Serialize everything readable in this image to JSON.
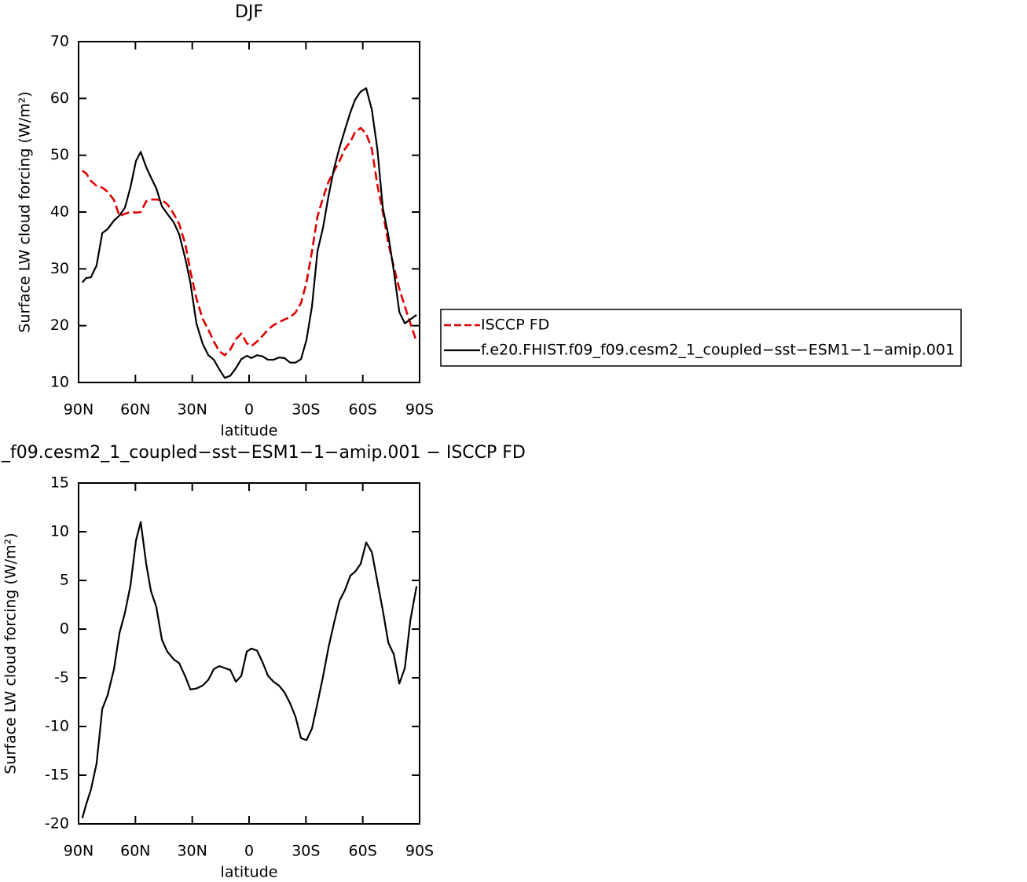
{
  "chart_data": [
    {
      "type": "line",
      "title": "DJF",
      "xlabel": "latitude",
      "ylabel": "Surface LW cloud forcing (W/m²)",
      "x": [
        88,
        86,
        83.5,
        80.5,
        77.5,
        74.7,
        71.3,
        68.4,
        65.5,
        62.6,
        59.7,
        57.2,
        54.3,
        51.8,
        49,
        46,
        43.2,
        39.8,
        36.9,
        33.6,
        31,
        27.8,
        24.5,
        21.5,
        18.6,
        15.7,
        12.8,
        9.9,
        7,
        4.1,
        1.2,
        -1.2,
        -4.2,
        -7.1,
        -10,
        -12.9,
        -15.8,
        -18.7,
        -21.6,
        -24.5,
        -27.4,
        -30.3,
        -33.2,
        -36.1,
        -39,
        -41.9,
        -44.8,
        -47.7,
        -50.6,
        -53.5,
        -56,
        -58.9,
        -61.8,
        -64.8,
        -67.7,
        -70.6,
        -73.5,
        -76.4,
        -79.3,
        -82.2,
        -85.1,
        -88.4
      ],
      "series": [
        {
          "name": "ISCCP FD",
          "color": "#e00000",
          "linestyle": "dashed",
          "values": [
            47.3,
            46.8,
            45.5,
            44.6,
            44.3,
            43.6,
            42.1,
            39.3,
            39.7,
            40,
            39.9,
            40,
            41.9,
            42.2,
            42.2,
            42.1,
            41.4,
            39.7,
            37.9,
            34.3,
            29.6,
            24.8,
            21.2,
            19.3,
            17.2,
            15.5,
            14.8,
            15.8,
            17.6,
            18.6,
            16.9,
            16.4,
            17.2,
            18.2,
            19.3,
            20.1,
            20.6,
            21.1,
            21.5,
            22.3,
            24,
            27.6,
            33.1,
            39.2,
            42.5,
            45.3,
            47.2,
            49,
            51.1,
            52.4,
            54.1,
            54.8,
            53.8,
            51.1,
            44.8,
            40,
            34.5,
            30.3,
            26.5,
            23.4,
            20.4,
            17.2
          ]
        },
        {
          "name": "f.e20.FHIST.f09_f09.cesm2_1_coupled−sst−ESM1−1−amip.001",
          "color": "#000000",
          "linestyle": "solid",
          "values": [
            27.6,
            28.4,
            28.5,
            30.6,
            36.3,
            37,
            38.5,
            39.4,
            40.8,
            44.4,
            49,
            50.6,
            47.9,
            46.1,
            44.2,
            41,
            39.7,
            38.2,
            36.1,
            31.7,
            27.6,
            20.4,
            16.8,
            14.8,
            14,
            12.3,
            10.8,
            11.2,
            12.5,
            14.1,
            14.7,
            14.3,
            14.8,
            14.6,
            14,
            14,
            14.4,
            14.3,
            13.5,
            13.5,
            14.1,
            17.5,
            23.4,
            33.1,
            37.2,
            42.8,
            47.6,
            51.3,
            54.5,
            57.6,
            59.8,
            61.2,
            61.8,
            58,
            51.1,
            40.7,
            35.9,
            29.6,
            22.4,
            20.4,
            21.1,
            21.9
          ]
        }
      ],
      "xlim": [
        90,
        -90
      ],
      "xticks": [
        {
          "value": 90,
          "label": "90N"
        },
        {
          "value": 60,
          "label": "60N"
        },
        {
          "value": 30,
          "label": "30N"
        },
        0,
        {
          "value": -30,
          "label": "30S"
        },
        {
          "value": -60,
          "label": "60S"
        },
        {
          "value": -90,
          "label": "90S"
        }
      ],
      "ylim": [
        10,
        70
      ],
      "yticks": [
        10,
        20,
        30,
        40,
        50,
        60,
        70
      ],
      "legend": "right"
    },
    {
      "type": "line",
      "title": "_f09.cesm2_1_coupled−sst−ESM1−1−amip.001 − ISCCP FD",
      "xlabel": "latitude",
      "ylabel": "Surface LW cloud forcing (W/m²)",
      "x": [
        88,
        86,
        83.5,
        80.5,
        77.5,
        74.7,
        71.3,
        68.4,
        65.5,
        62.6,
        59.7,
        57.2,
        54.3,
        51.8,
        49,
        46,
        43.2,
        39.8,
        36.9,
        33.6,
        31,
        27.8,
        24.5,
        21.5,
        18.6,
        15.7,
        12.8,
        9.9,
        7,
        4.1,
        1.2,
        -1.2,
        -4.2,
        -7.1,
        -10,
        -12.9,
        -15.8,
        -18.7,
        -21.6,
        -24.5,
        -27.4,
        -30.3,
        -33.2,
        -36.1,
        -39,
        -41.9,
        -44.8,
        -47.7,
        -50.6,
        -53.5,
        -56,
        -58.9,
        -61.8,
        -64.8,
        -67.7,
        -70.6,
        -73.5,
        -76.4,
        -79.3,
        -82.2,
        -85.1,
        -88.4
      ],
      "series": [
        {
          "color": "#000000",
          "linestyle": "solid",
          "values": [
            -19.4,
            -18,
            -16.5,
            -13.8,
            -8.2,
            -6.8,
            -4.1,
            -0.4,
            1.7,
            4.5,
            9.1,
            11,
            6.7,
            3.9,
            2.3,
            -1.1,
            -2.3,
            -3.1,
            -3.5,
            -4.9,
            -6.2,
            -6.1,
            -5.8,
            -5.2,
            -4.1,
            -3.8,
            -4,
            -4.2,
            -5.4,
            -4.8,
            -2.3,
            -2,
            -2.2,
            -3.4,
            -4.8,
            -5.4,
            -5.8,
            -6.5,
            -7.6,
            -9,
            -11.2,
            -11.4,
            -10.2,
            -7.6,
            -4.9,
            -1.9,
            0.6,
            2.9,
            4,
            5.5,
            5.9,
            6.7,
            8.9,
            7.9,
            4.9,
            1.9,
            -1.4,
            -2.6,
            -5.6,
            -4,
            0.9,
            4.4
          ]
        }
      ],
      "xlim": [
        90,
        -90
      ],
      "xticks": [
        {
          "value": 90,
          "label": "90N"
        },
        {
          "value": 60,
          "label": "60N"
        },
        {
          "value": 30,
          "label": "30N"
        },
        0,
        {
          "value": -30,
          "label": "30S"
        },
        {
          "value": -60,
          "label": "60S"
        },
        {
          "value": -90,
          "label": "90S"
        }
      ],
      "ylim": [
        -20,
        15
      ],
      "yticks": [
        -20,
        -15,
        -10,
        -5,
        0,
        5,
        10,
        15
      ]
    }
  ]
}
